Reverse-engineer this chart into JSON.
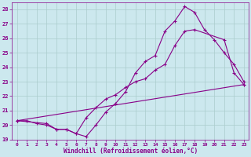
{
  "xlabel": "Windchill (Refroidissement éolien,°C)",
  "ylabel": "",
  "bg_color": "#cce8ee",
  "grid_color": "#aacccc",
  "line_color": "#880088",
  "xlim": [
    -0.5,
    23.5
  ],
  "ylim": [
    19,
    28.5
  ],
  "xticks": [
    0,
    1,
    2,
    3,
    4,
    5,
    6,
    7,
    8,
    9,
    10,
    11,
    12,
    13,
    14,
    15,
    16,
    17,
    18,
    19,
    20,
    21,
    22,
    23
  ],
  "yticks": [
    19,
    20,
    21,
    22,
    23,
    24,
    25,
    26,
    27,
    28
  ],
  "line1_x": [
    0,
    1,
    2,
    3,
    4,
    5,
    6,
    7,
    8,
    9,
    10,
    11,
    12,
    13,
    14,
    15,
    16,
    17,
    18,
    19,
    20,
    21,
    22,
    23
  ],
  "line1_y": [
    20.3,
    20.3,
    20.1,
    20.0,
    19.7,
    19.7,
    19.4,
    19.2,
    20.0,
    20.9,
    21.5,
    22.3,
    23.6,
    24.4,
    24.8,
    26.5,
    27.2,
    28.2,
    27.8,
    26.6,
    25.9,
    25.0,
    24.2,
    23.0
  ],
  "line2_x": [
    0,
    3,
    4,
    5,
    6,
    7,
    8,
    9,
    10,
    11,
    12,
    13,
    14,
    15,
    16,
    17,
    18,
    21,
    22,
    23
  ],
  "line2_y": [
    20.3,
    20.1,
    19.7,
    19.7,
    19.4,
    20.5,
    21.2,
    21.8,
    22.1,
    22.6,
    23.0,
    23.2,
    23.8,
    24.2,
    25.5,
    26.5,
    26.6,
    25.9,
    23.6,
    22.8
  ],
  "line3_x": [
    0,
    23
  ],
  "line3_y": [
    20.3,
    22.8
  ],
  "marker": "+"
}
